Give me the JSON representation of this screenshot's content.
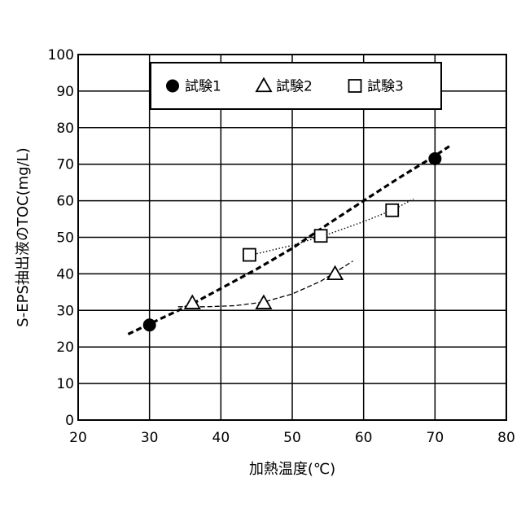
{
  "chart_data": {
    "type": "scatter",
    "title": "",
    "xlabel": "加熱温度(℃)",
    "ylabel": "S-EPS抽出液のTOC(mg/L)",
    "xlim": [
      20,
      80
    ],
    "ylim": [
      0,
      100
    ],
    "xticks": [
      20,
      30,
      40,
      50,
      60,
      70,
      80
    ],
    "yticks": [
      0,
      10,
      20,
      30,
      40,
      50,
      60,
      70,
      80,
      90,
      100
    ],
    "grid": true,
    "legend_position": "top",
    "series": [
      {
        "name": "試験1",
        "marker": "filled-circle",
        "points": [
          [
            30,
            26
          ],
          [
            70,
            71.5
          ]
        ],
        "trend": {
          "style": "thick-dashed",
          "x": [
            27,
            30,
            36,
            40,
            45,
            50,
            55,
            60,
            65,
            70,
            72
          ],
          "y": [
            23.5,
            26.3,
            31.8,
            36.0,
            41.3,
            47.0,
            53.6,
            60.0,
            66.3,
            72.3,
            74.9
          ]
        }
      },
      {
        "name": "試験2",
        "marker": "open-triangle",
        "points": [
          [
            36,
            32
          ],
          [
            46,
            32
          ],
          [
            56,
            40
          ]
        ],
        "trend": {
          "style": "thin-dashed",
          "x": [
            34,
            38,
            42,
            46,
            50,
            54,
            58.5
          ],
          "y": [
            31,
            31.0,
            31.3,
            32.3,
            34.5,
            38.0,
            43.5
          ]
        }
      },
      {
        "name": "試験3",
        "marker": "open-square",
        "points": [
          [
            44,
            45.2
          ],
          [
            54,
            50.4
          ],
          [
            64,
            57.4
          ]
        ],
        "trend": {
          "style": "dotted",
          "x": [
            45,
            50,
            55,
            60,
            64,
            67
          ],
          "y": [
            45.5,
            47.8,
            50.8,
            54.3,
            57.4,
            60.5
          ]
        }
      }
    ]
  }
}
